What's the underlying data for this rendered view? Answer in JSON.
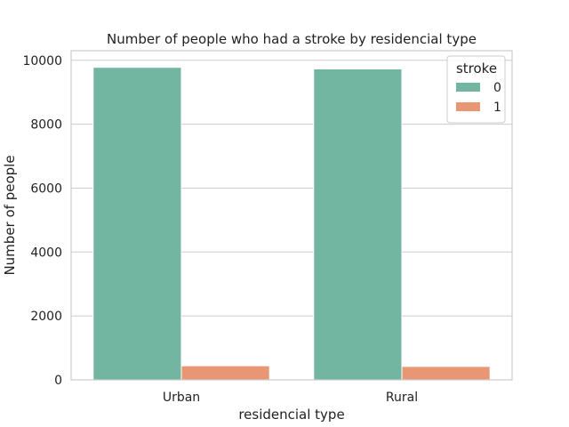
{
  "chart_data": {
    "type": "bar",
    "title": "Number of people who had a stroke by residencial type",
    "xlabel": "residencial type",
    "ylabel": "Number of people",
    "categories": [
      "Urban",
      "Rural"
    ],
    "series": [
      {
        "name": "0",
        "values": [
          9780,
          9730
        ],
        "color": "#72b6a1"
      },
      {
        "name": "1",
        "values": [
          440,
          420
        ],
        "color": "#e99675"
      }
    ],
    "ylim": [
      0,
      10300
    ],
    "yticks": [
      0,
      2000,
      4000,
      6000,
      8000,
      10000
    ],
    "grid": "horizontal",
    "legend": {
      "title": "stroke",
      "placement": "top-right"
    }
  }
}
